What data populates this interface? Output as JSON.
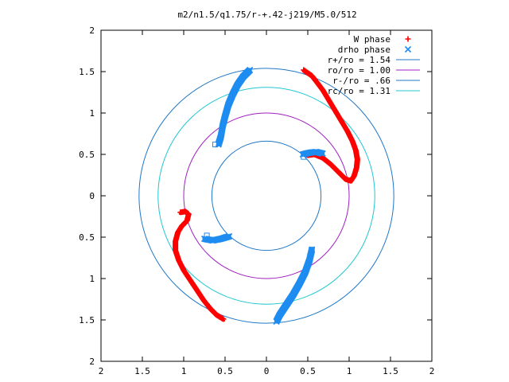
{
  "chart_data": {
    "type": "scatter",
    "title": "m2/n1.5/q1.75/r-+.42-j219/M5.0/512",
    "xlim": [
      -2,
      2
    ],
    "ylim": [
      -2,
      2
    ],
    "x_ticks": [
      -2,
      -1.5,
      -1,
      -0.5,
      0,
      0.5,
      1,
      1.5,
      2
    ],
    "y_ticks": [
      -2,
      -1.5,
      -1,
      -0.5,
      0,
      0.5,
      1,
      1.5,
      2
    ],
    "x_tick_labels": [
      "2",
      "1.5",
      "1",
      "0.5",
      "0",
      "0.5",
      "1",
      "1.5",
      "2"
    ],
    "y_tick_labels": [
      "2",
      "1.5",
      "1",
      "0.5",
      "0",
      "0.5",
      "1",
      "1.5",
      "2"
    ],
    "grid": false,
    "legend_position": "top-right",
    "legend": [
      {
        "label": "W phase",
        "marker": "+",
        "color": "#ff0000"
      },
      {
        "label": "drho phase",
        "marker": "x",
        "color": "#1e8cf0"
      },
      {
        "label": "r+/ro = 1.54",
        "line": true,
        "color": "#1f77c8"
      },
      {
        "label": "ro/ro = 1.00",
        "line": true,
        "color": "#a020c0"
      },
      {
        "label": "r-/ro = .66",
        "line": true,
        "color": "#1f77c8"
      },
      {
        "label": "rc/ro = 1.31",
        "line": true,
        "color": "#20c8d0"
      }
    ],
    "circles": [
      {
        "name": "r+/ro",
        "r": 1.54,
        "color": "#1f77c8"
      },
      {
        "name": "ro/ro",
        "r": 1.0,
        "color": "#a020c0"
      },
      {
        "name": "r-/ro",
        "r": 0.66,
        "color": "#1f77c8"
      },
      {
        "name": "rc/ro",
        "r": 1.31,
        "color": "#20c8d0"
      }
    ],
    "series": [
      {
        "name": "W phase",
        "marker": "+",
        "color": "#ff0000",
        "segments": [
          [
            [
              0.45,
              1.52
            ],
            [
              0.55,
              1.45
            ],
            [
              0.62,
              1.36
            ],
            [
              0.68,
              1.28
            ],
            [
              0.74,
              1.18
            ],
            [
              0.8,
              1.08
            ],
            [
              0.86,
              0.98
            ],
            [
              0.92,
              0.88
            ],
            [
              0.98,
              0.78
            ],
            [
              1.04,
              0.66
            ],
            [
              1.08,
              0.55
            ],
            [
              1.1,
              0.44
            ],
            [
              1.09,
              0.34
            ],
            [
              1.06,
              0.24
            ],
            [
              1.02,
              0.18
            ],
            [
              0.96,
              0.2
            ],
            [
              0.88,
              0.28
            ],
            [
              0.78,
              0.38
            ],
            [
              0.68,
              0.46
            ],
            [
              0.58,
              0.5
            ],
            [
              0.5,
              0.49
            ]
          ],
          [
            [
              -1.04,
              -0.2
            ],
            [
              -0.98,
              -0.19
            ],
            [
              -0.94,
              -0.22
            ],
            [
              -0.96,
              -0.3
            ],
            [
              -1.02,
              -0.36
            ],
            [
              -1.07,
              -0.44
            ],
            [
              -1.1,
              -0.55
            ],
            [
              -1.1,
              -0.66
            ],
            [
              -1.06,
              -0.78
            ],
            [
              -1.0,
              -0.9
            ],
            [
              -0.92,
              -1.02
            ],
            [
              -0.84,
              -1.14
            ],
            [
              -0.76,
              -1.26
            ],
            [
              -0.68,
              -1.36
            ],
            [
              -0.6,
              -1.44
            ],
            [
              -0.52,
              -1.49
            ]
          ]
        ]
      },
      {
        "name": "drho phase",
        "marker": "x",
        "color": "#1e8cf0",
        "segments": [
          [
            [
              -0.2,
              1.52
            ],
            [
              -0.28,
              1.44
            ],
            [
              -0.35,
              1.34
            ],
            [
              -0.41,
              1.22
            ],
            [
              -0.46,
              1.1
            ],
            [
              -0.5,
              0.96
            ],
            [
              -0.53,
              0.84
            ],
            [
              -0.55,
              0.72
            ],
            [
              -0.58,
              0.62
            ]
          ],
          [
            [
              0.68,
              0.51
            ],
            [
              0.6,
              0.53
            ],
            [
              0.52,
              0.52
            ],
            [
              0.44,
              0.5
            ]
          ],
          [
            [
              0.55,
              -0.65
            ],
            [
              0.52,
              -0.78
            ],
            [
              0.47,
              -0.92
            ],
            [
              0.4,
              -1.06
            ],
            [
              0.32,
              -1.2
            ],
            [
              0.24,
              -1.32
            ],
            [
              0.16,
              -1.44
            ],
            [
              0.12,
              -1.52
            ]
          ],
          [
            [
              -0.45,
              -0.49
            ],
            [
              -0.55,
              -0.52
            ],
            [
              -0.65,
              -0.54
            ],
            [
              -0.75,
              -0.52
            ]
          ]
        ]
      }
    ],
    "open_square_markers": [
      [
        -0.62,
        0.62
      ],
      [
        0.45,
        0.47
      ],
      [
        0.55,
        -0.65
      ],
      [
        -0.72,
        -0.48
      ]
    ]
  }
}
